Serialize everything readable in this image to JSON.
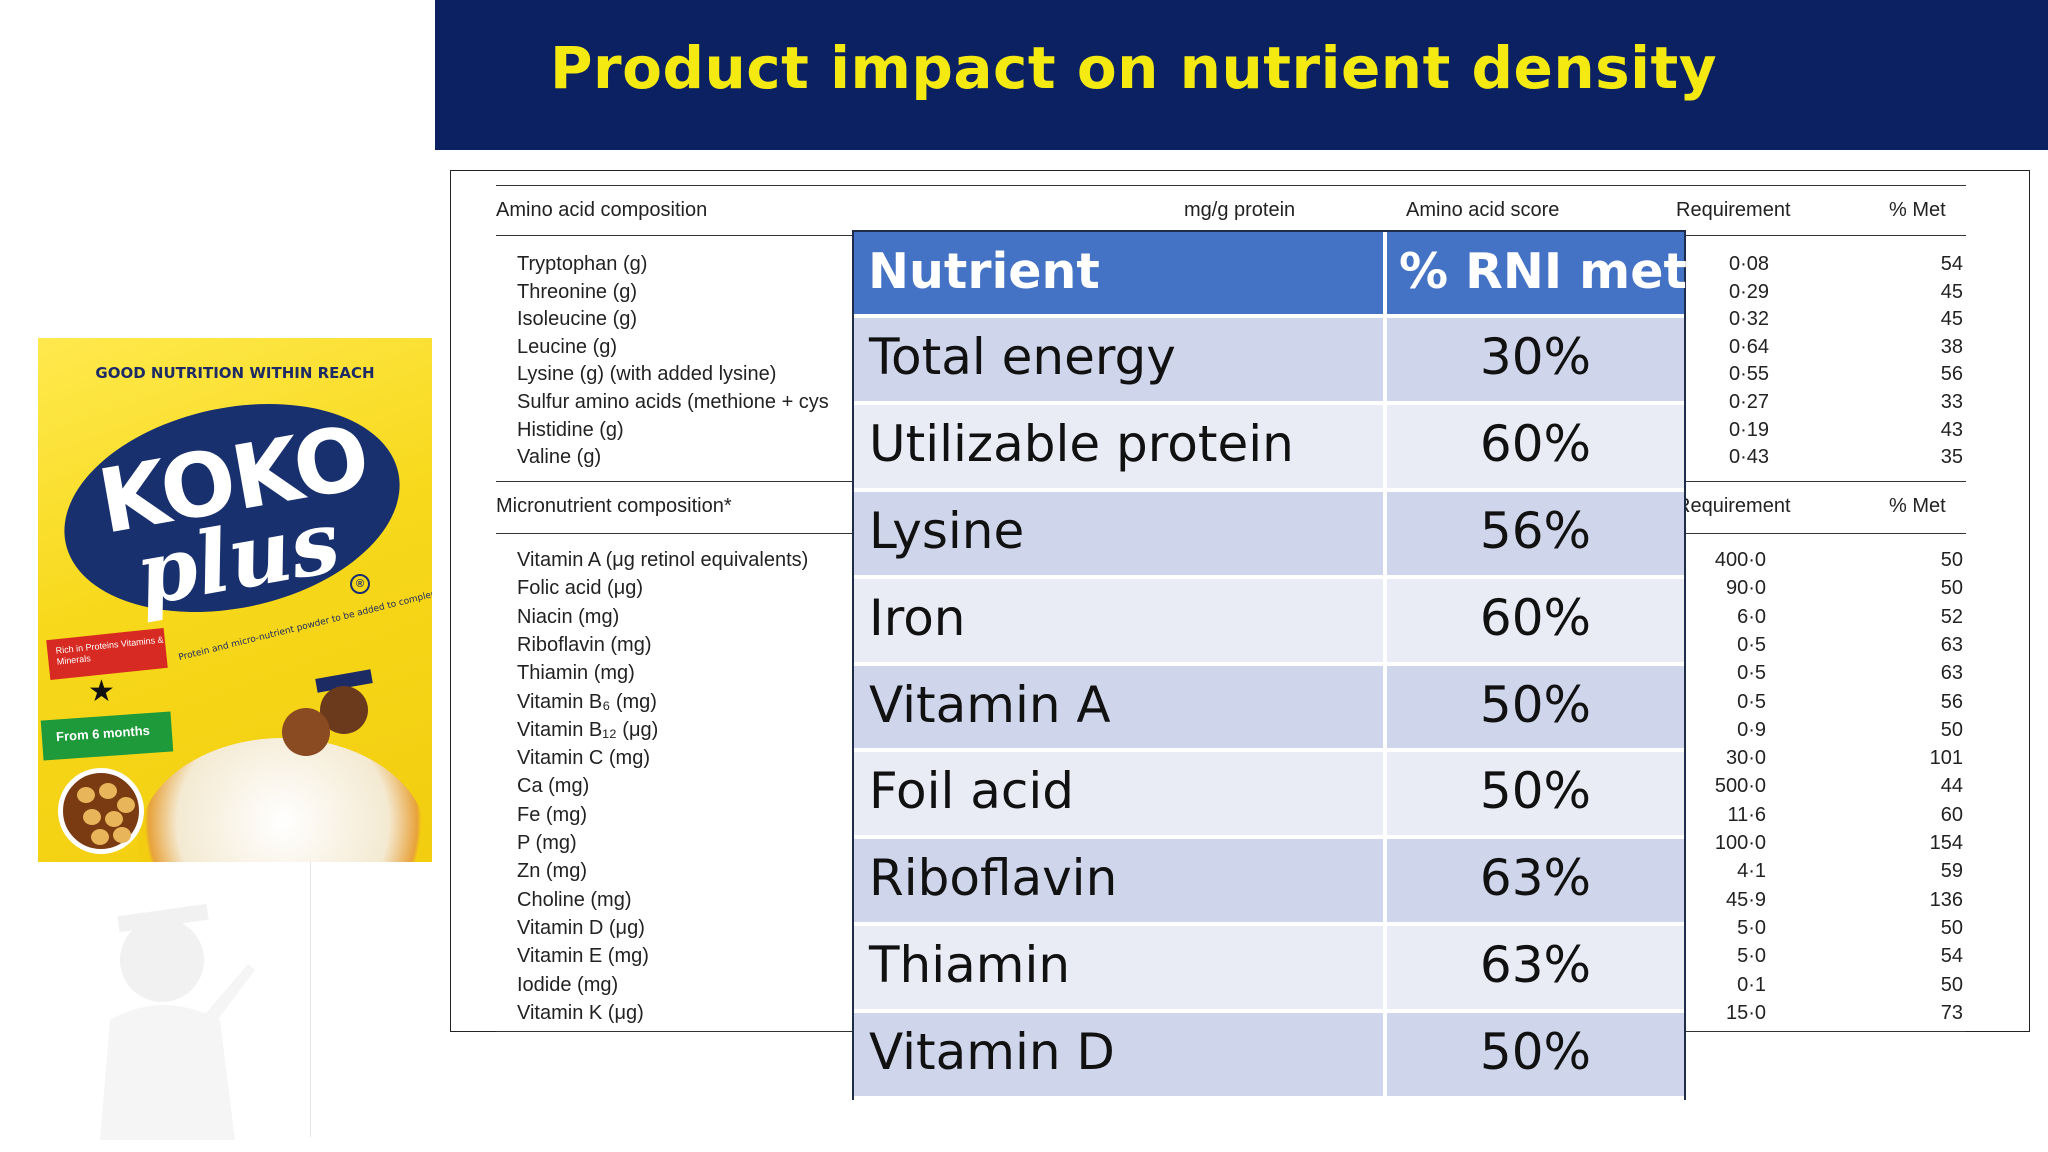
{
  "slide": {
    "title": "Product impact on nutrient density"
  },
  "product": {
    "tagline": "GOOD NUTRITION WITHIN REACH",
    "brand_line1": "KOKO",
    "brand_line2": "plus",
    "registered_mark": "®",
    "description": "Protein and micro-nutrient powder to be added to complementary foods",
    "badge_red": "Rich in Proteins Vitamins & Minerals",
    "badge_green": "From 6 months",
    "colors": {
      "pack": "#f7d81a",
      "oval": "#19306e",
      "red_badge": "#d62a22",
      "green_badge": "#1e9a3b"
    }
  },
  "source_table": {
    "amino_section": {
      "headers": [
        "Amino acid composition",
        "mg/g protein",
        "Amino acid score",
        "Requirement",
        "% Met"
      ],
      "rows": [
        {
          "name": "Tryptophan (g)",
          "requirement": "0·08",
          "met": "54"
        },
        {
          "name": "Threonine (g)",
          "requirement": "0·29",
          "met": "45"
        },
        {
          "name": "Isoleucine (g)",
          "requirement": "0·32",
          "met": "45"
        },
        {
          "name": "Leucine (g)",
          "requirement": "0·64",
          "met": "38"
        },
        {
          "name": "Lysine (g) (with added lysine)",
          "requirement": "0·55",
          "met": "56"
        },
        {
          "name": "Sulfur amino acids (methione + cys",
          "requirement": "0·27",
          "met": "33"
        },
        {
          "name": "Histidine (g)",
          "requirement": "0·19",
          "met": "43"
        },
        {
          "name": "Valine (g)",
          "requirement": "0·43",
          "met": "35"
        }
      ]
    },
    "micro_section": {
      "headers": [
        "Micronutrient composition*",
        "Requirement",
        "% Met"
      ],
      "rows": [
        {
          "name": "Vitamin A (μg retinol equivalents)",
          "requirement": "400·0",
          "met": "50"
        },
        {
          "name": "Folic acid (μg)",
          "requirement": "90·0",
          "met": "50"
        },
        {
          "name": "Niacin (mg)",
          "requirement": "6·0",
          "met": "52"
        },
        {
          "name": "Riboflavin (mg)",
          "requirement": "0·5",
          "met": "63"
        },
        {
          "name": "Thiamin (mg)",
          "requirement": "0·5",
          "met": "63"
        },
        {
          "name": "Vitamin B₆ (mg)",
          "requirement": "0·5",
          "met": "56"
        },
        {
          "name": "Vitamin B₁₂ (μg)",
          "requirement": "0·9",
          "met": "50"
        },
        {
          "name": "Vitamin C (mg)",
          "requirement": "30·0",
          "met": "101"
        },
        {
          "name": "Ca (mg)",
          "requirement": "500·0",
          "met": "44"
        },
        {
          "name": "Fe (mg)",
          "requirement": "11·6",
          "met": "60"
        },
        {
          "name": "P (mg)",
          "requirement": "100·0",
          "met": "154"
        },
        {
          "name": "Zn (mg)",
          "requirement": "4·1",
          "met": "59"
        },
        {
          "name": "Choline (mg)",
          "requirement": "45·9",
          "met": "136"
        },
        {
          "name": "Vitamin D (μg)",
          "requirement": "5·0",
          "met": "50"
        },
        {
          "name": "Vitamin E (mg)",
          "requirement": "5·0",
          "met": "54"
        },
        {
          "name": "Iodide (mg)",
          "requirement": "0·1",
          "met": "50"
        },
        {
          "name": "Vitamin K (μg)",
          "requirement": "15·0",
          "met": "73"
        }
      ]
    }
  },
  "summary_table": {
    "headers": [
      "Nutrient",
      "% RNI met"
    ],
    "rows": [
      [
        "Total energy",
        "30%"
      ],
      [
        "Utilizable protein",
        "60%"
      ],
      [
        "Lysine",
        "56%"
      ],
      [
        "Iron",
        "60%"
      ],
      [
        "Vitamin A",
        "50%"
      ],
      [
        "Foil acid",
        "50%"
      ],
      [
        "Riboflavin",
        "63%"
      ],
      [
        "Thiamin",
        "63%"
      ],
      [
        "Vitamin D",
        "50%"
      ]
    ],
    "colors": {
      "header": "#4472c4",
      "row_dark": "#cfd5ea",
      "row_light": "#e9ebf5"
    }
  }
}
